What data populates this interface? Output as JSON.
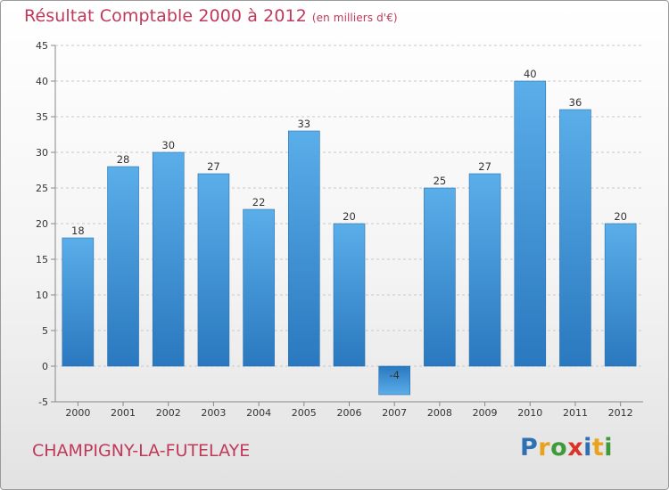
{
  "header": {
    "title": "Résultat Comptable 2000 à 2012",
    "subtitle": "(en milliers d'€)"
  },
  "footer": {
    "commune": "CHAMPIGNY-LA-FUTELAYE",
    "logo_letters": [
      "P",
      "r",
      "o",
      "x",
      "i",
      "t",
      "i"
    ],
    "logo_colors": [
      "#2f6fb3",
      "#e8a21c",
      "#3f9a3a",
      "#d8342a",
      "#2f6fb3",
      "#e8a21c",
      "#3f9a3a"
    ]
  },
  "chart_data": {
    "type": "bar",
    "title": "Résultat Comptable 2000 à 2012",
    "subtitle": "(en milliers d'€)",
    "categories": [
      "2000",
      "2001",
      "2002",
      "2003",
      "2004",
      "2005",
      "2006",
      "2007",
      "2008",
      "2009",
      "2010",
      "2011",
      "2012"
    ],
    "values": [
      18,
      28,
      30,
      27,
      22,
      33,
      20,
      -4,
      25,
      27,
      40,
      36,
      20
    ],
    "value_labels": [
      "18",
      "28",
      "30",
      "27",
      "22",
      "33",
      "20",
      "-4",
      "25",
      "27",
      "40",
      "36",
      "20"
    ],
    "ylim": [
      -5,
      45
    ],
    "yticks": [
      -5,
      0,
      5,
      10,
      15,
      20,
      25,
      30,
      35,
      40,
      45
    ],
    "ytick_labels": [
      "-5",
      "0",
      "5",
      "10",
      "15",
      "20",
      "25",
      "30",
      "35",
      "40",
      "45"
    ],
    "grid": true,
    "bar_color": "#3d8fd6",
    "xlabel": "",
    "ylabel": ""
  }
}
